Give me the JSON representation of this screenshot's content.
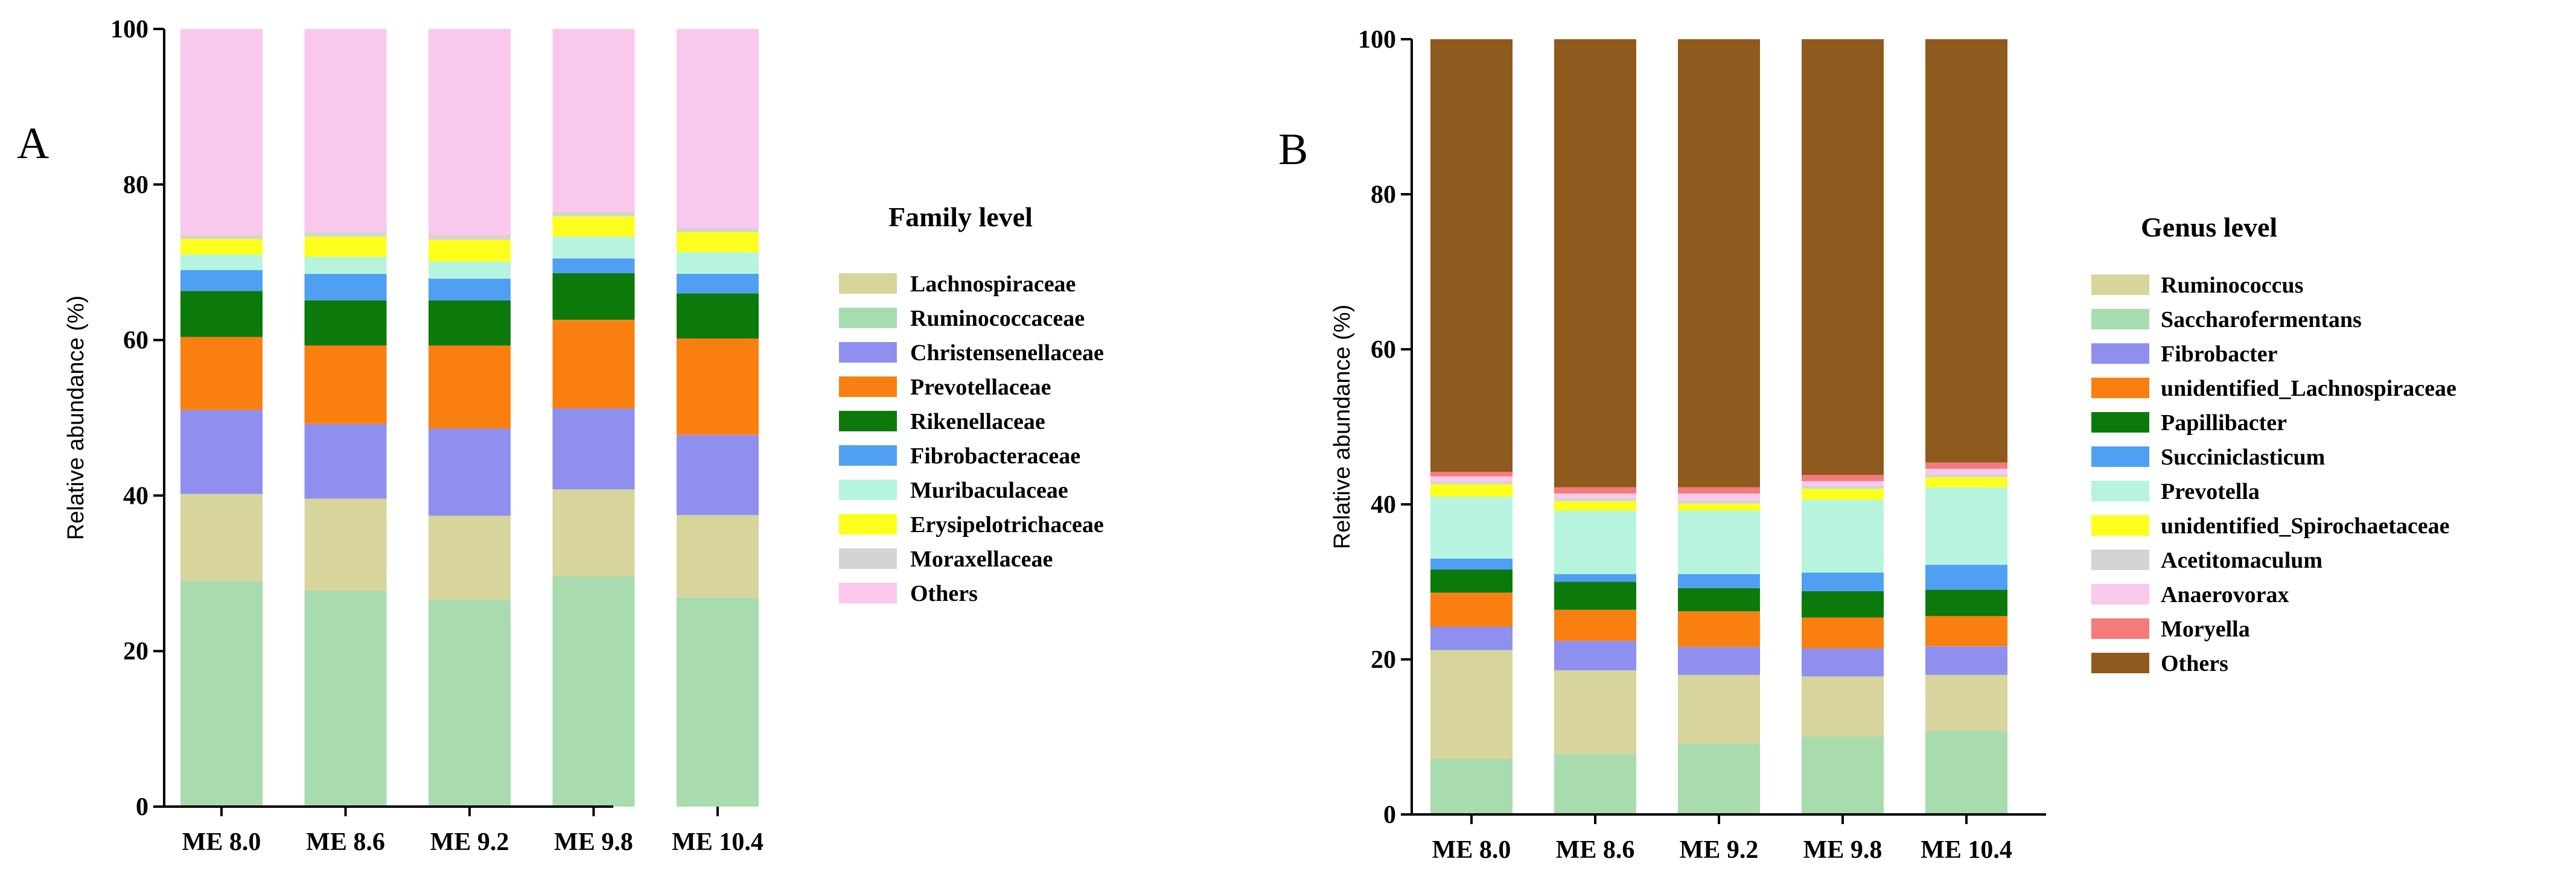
{
  "chart_data": [
    {
      "type": "bar",
      "stacked": true,
      "panel": "A",
      "title": "",
      "xlabel": "",
      "ylabel": "Relative abundance (%)",
      "ylim": [
        0,
        100
      ],
      "yticks": [
        0,
        20,
        40,
        60,
        80,
        100
      ],
      "categories": [
        "ME 8.0",
        "ME 8.6",
        "ME 9.2",
        "ME 9.8",
        "ME 10.4"
      ],
      "legend_title": "Family level",
      "series": [
        {
          "name": "Ruminococcaceae",
          "color": "#a8dcae",
          "values": [
            29.0,
            27.8,
            26.6,
            29.6,
            26.9
          ]
        },
        {
          "name": "Lachnospiraceae",
          "color": "#d7d49c",
          "values": [
            11.2,
            11.8,
            10.8,
            11.2,
            10.6
          ]
        },
        {
          "name": "Christensenellaceae",
          "color": "#8f8ff0",
          "values": [
            10.8,
            9.6,
            11.2,
            10.4,
            10.3
          ]
        },
        {
          "name": "Prevotellaceae",
          "color": "#f98010",
          "values": [
            9.4,
            10.1,
            10.7,
            11.4,
            12.4
          ]
        },
        {
          "name": "Rikenellaceae",
          "color": "#0b7a0b",
          "values": [
            5.9,
            5.8,
            5.8,
            6.0,
            5.8
          ]
        },
        {
          "name": "Fibrobacteraceae",
          "color": "#4fa0f2",
          "values": [
            2.7,
            3.4,
            2.8,
            1.9,
            2.5
          ]
        },
        {
          "name": "Muribaculaceae",
          "color": "#b6f4de",
          "values": [
            2.0,
            2.2,
            2.2,
            2.8,
            2.8
          ]
        },
        {
          "name": "Erysipelotrichaceae",
          "color": "#ffff1e",
          "values": [
            2.0,
            2.6,
            2.8,
            2.6,
            2.6
          ]
        },
        {
          "name": "Moraxellaceae",
          "color": "#d4d4d4",
          "values": [
            0.5,
            0.6,
            0.6,
            0.6,
            0.5
          ]
        },
        {
          "name": "Others",
          "color": "#f9c8ec",
          "values": [
            26.5,
            26.1,
            26.5,
            23.5,
            25.6
          ]
        }
      ],
      "legend_order": [
        "Lachnospiraceae",
        "Ruminococcaceae",
        "Christensenellaceae",
        "Prevotellaceae",
        "Rikenellaceae",
        "Fibrobacteraceae",
        "Muribaculaceae",
        "Erysipelotrichaceae",
        "Moraxellaceae",
        "Others"
      ]
    },
    {
      "type": "bar",
      "stacked": true,
      "panel": "B",
      "title": "",
      "xlabel": "",
      "ylabel": "Relative abundance (%)",
      "ylim": [
        0,
        100
      ],
      "yticks": [
        0,
        20,
        40,
        60,
        80,
        100
      ],
      "categories": [
        "ME 8.0",
        "ME 8.6",
        "ME 9.2",
        "ME 9.8",
        "ME 10.4"
      ],
      "legend_title": "Genus level",
      "series": [
        {
          "name": "Saccharofermentans",
          "color": "#a8dcae",
          "values": [
            7.2,
            7.8,
            9.1,
            10.0,
            10.8
          ]
        },
        {
          "name": "Ruminococcus",
          "color": "#d7d49c",
          "values": [
            14.0,
            10.8,
            8.9,
            7.8,
            7.2
          ]
        },
        {
          "name": "Fibrobacter",
          "color": "#8f8ff0",
          "values": [
            3.0,
            3.8,
            3.6,
            3.6,
            3.7
          ]
        },
        {
          "name": "unidentified_Lachnospiraceae",
          "color": "#f98010",
          "values": [
            4.4,
            4.0,
            4.6,
            4.0,
            3.9
          ]
        },
        {
          "name": "Papillibacter",
          "color": "#0b7a0b",
          "values": [
            3.0,
            3.6,
            3.0,
            3.4,
            3.4
          ]
        },
        {
          "name": "Succiniclasticum",
          "color": "#4fa0f2",
          "values": [
            1.4,
            1.0,
            1.8,
            2.4,
            3.2
          ]
        },
        {
          "name": "Prevotella",
          "color": "#b6f4de",
          "values": [
            8.0,
            8.2,
            8.2,
            9.4,
            10.0
          ]
        },
        {
          "name": "unidentified_Spirochaetaceae",
          "color": "#ffff1e",
          "values": [
            1.6,
            1.2,
            0.9,
            1.4,
            1.3
          ]
        },
        {
          "name": "Acetitomaculum",
          "color": "#d4d4d4",
          "values": [
            0.4,
            0.4,
            0.4,
            0.4,
            0.4
          ]
        },
        {
          "name": "Anaerovorax",
          "color": "#f9c8ec",
          "values": [
            0.6,
            0.6,
            0.9,
            0.6,
            0.7
          ]
        },
        {
          "name": "Moryella",
          "color": "#f37b7b",
          "values": [
            0.6,
            0.8,
            0.8,
            0.8,
            0.8
          ]
        },
        {
          "name": "Others",
          "color": "#8f5a1e",
          "values": [
            55.8,
            57.8,
            57.8,
            56.2,
            54.6
          ]
        }
      ],
      "legend_order": [
        "Ruminococcus",
        "Saccharofermentans",
        "Fibrobacter",
        "unidentified_Lachnospiraceae",
        "Papillibacter",
        "Succiniclasticum",
        "Prevotella",
        "unidentified_Spirochaetaceae",
        "Acetitomaculum",
        "Anaerovorax",
        "Moryella",
        "Others"
      ]
    }
  ]
}
